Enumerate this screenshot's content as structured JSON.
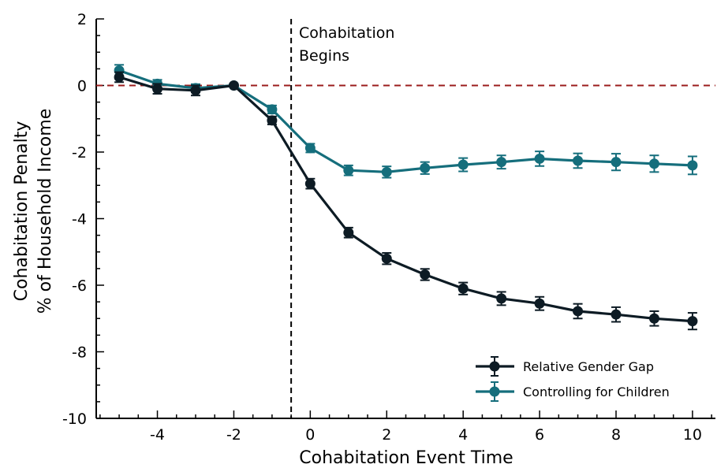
{
  "chart_data": {
    "type": "line",
    "xlabel": "Cohabitation Event Time",
    "ylabel_line1": "Cohabitation Penalty",
    "ylabel_line2": "% of Household Income",
    "xlim": [
      -5.6,
      10.6
    ],
    "ylim": [
      -10,
      2
    ],
    "x_ticks": [
      -4,
      -2,
      0,
      2,
      4,
      6,
      8,
      10
    ],
    "y_ticks": [
      2,
      0,
      -2,
      -4,
      -6,
      -8,
      -10
    ],
    "x_tick_labels": [
      "-4",
      "-2",
      "0",
      "2",
      "4",
      "6",
      "8",
      "10"
    ],
    "y_tick_labels": [
      "2",
      "0",
      "-2",
      "-4",
      "-6",
      "-8",
      "-10"
    ],
    "reference_hline": {
      "y": 0,
      "color": "#9b1c1c",
      "style": "dashed"
    },
    "event_vline": {
      "x": -0.5,
      "color": "#000000",
      "style": "dashed"
    },
    "annotation_line1": "Cohabitation",
    "annotation_line2": "Begins",
    "legend_position": "bottom-right",
    "grid": false,
    "x": [
      -5,
      -4,
      -3,
      -2,
      -1,
      0,
      1,
      2,
      3,
      4,
      5,
      6,
      7,
      8,
      9,
      10
    ],
    "series": [
      {
        "name": "Relative Gender Gap",
        "color": "#0d1b24",
        "values": [
          0.25,
          -0.1,
          -0.15,
          0.0,
          -1.05,
          -2.95,
          -4.42,
          -5.2,
          -5.68,
          -6.1,
          -6.4,
          -6.55,
          -6.78,
          -6.88,
          -7.0,
          -7.08
        ],
        "err": [
          0.15,
          0.15,
          0.15,
          0.0,
          0.12,
          0.15,
          0.15,
          0.17,
          0.17,
          0.18,
          0.2,
          0.2,
          0.22,
          0.22,
          0.22,
          0.25
        ]
      },
      {
        "name": "Controlling for Children",
        "color": "#156e7c",
        "values": [
          0.45,
          0.05,
          -0.08,
          0.0,
          -0.72,
          -1.88,
          -2.55,
          -2.6,
          -2.48,
          -2.38,
          -2.3,
          -2.2,
          -2.26,
          -2.3,
          -2.35,
          -2.4
        ],
        "err": [
          0.17,
          0.12,
          0.12,
          0.0,
          0.12,
          0.13,
          0.15,
          0.17,
          0.18,
          0.2,
          0.2,
          0.22,
          0.22,
          0.25,
          0.25,
          0.27
        ]
      }
    ]
  }
}
